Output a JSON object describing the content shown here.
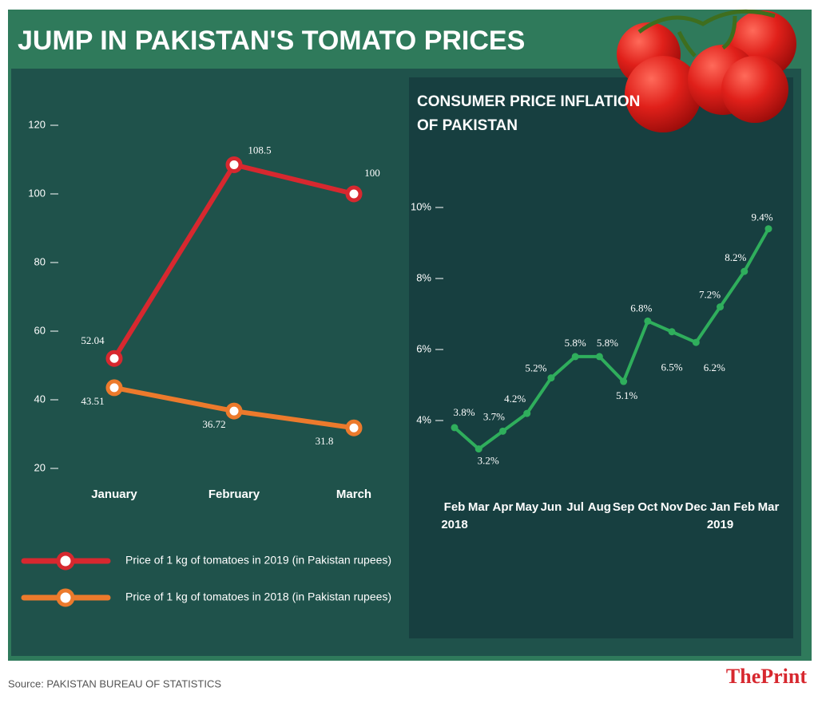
{
  "title": "JUMP IN PAKISTAN'S TOMATO PRICES",
  "source": "Source: PAKISTAN BUREAU OF STATISTICS",
  "brand": {
    "the": "The",
    "print": "Print"
  },
  "chart_data": [
    {
      "type": "line",
      "categories": [
        "January",
        "February",
        "March"
      ],
      "series": [
        {
          "name": "Price of 1 kg of tomatoes in 2019 (in Pakistan rupees)",
          "color": "#d7282f",
          "values": [
            52.04,
            108.5,
            100
          ]
        },
        {
          "name": "Price of 1 kg of tomatoes in 2018 (in Pakistan rupees)",
          "color": "#ec7a2c",
          "values": [
            43.51,
            36.72,
            31.8
          ]
        }
      ],
      "ylim": [
        20,
        120
      ],
      "yticks": [
        20,
        40,
        60,
        80,
        100,
        120
      ]
    },
    {
      "type": "line",
      "title": [
        "CONSUMER PRICE INFLATION",
        "OF PAKISTAN"
      ],
      "categories": [
        "Feb",
        "Mar",
        "Apr",
        "May",
        "Jun",
        "Jul",
        "Aug",
        "Sep",
        "Oct",
        "Nov",
        "Dec",
        "Jan",
        "Feb",
        "Mar"
      ],
      "category_years": [
        "2018",
        null,
        null,
        null,
        null,
        null,
        null,
        null,
        null,
        null,
        null,
        "2019",
        null,
        null
      ],
      "series": [
        {
          "color": "#2fae5c",
          "values": [
            3.8,
            3.2,
            3.7,
            4.2,
            5.2,
            5.8,
            5.8,
            5.1,
            6.8,
            6.5,
            6.2,
            7.2,
            8.2,
            9.4
          ],
          "value_labels": [
            "3.8%",
            "3.2%",
            "3.7%",
            "4.2%",
            "5.2%",
            "5.8%",
            "5.8%",
            "5.1%",
            "6.8%",
            "6.5%",
            "6.2%",
            "7.2%",
            "8.2%",
            "9.4%"
          ]
        }
      ],
      "ylim": [
        3,
        10
      ],
      "yticks": [
        {
          "value": 4,
          "label": "4%"
        },
        {
          "value": 6,
          "label": "6%"
        },
        {
          "value": 8,
          "label": "8%"
        },
        {
          "value": 10,
          "label": "10%"
        }
      ]
    }
  ]
}
